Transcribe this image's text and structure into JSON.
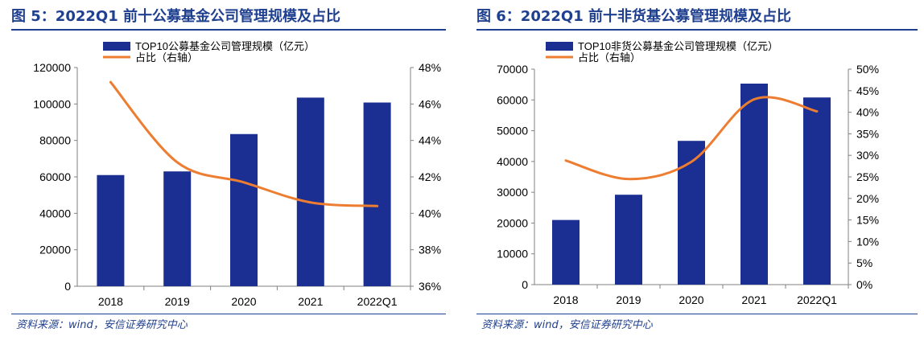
{
  "figures": [
    {
      "title": "图 5：2022Q1 前十公募基金公司管理规模及占比",
      "source": "资料来源：wind，安信证券研究中心",
      "legend": {
        "bar": "TOP10公募基金公司管理规模（亿元）",
        "line": "占比（右轴）"
      },
      "colors": {
        "bar": "#1a2f91",
        "line": "#ed7d31",
        "title": "#1f3f8f"
      }
    },
    {
      "title": "图 6：2022Q1 前十非货基公募管理规模及占比",
      "source": "资料来源：wind，安信证券研究中心",
      "legend": {
        "bar": "TOP10非货公募基金公司管理规模（亿元）",
        "line": "占比（右轴）"
      },
      "colors": {
        "bar": "#1a2f91",
        "line": "#ed7d31",
        "title": "#1f3f8f"
      }
    }
  ],
  "chart_data": [
    {
      "type": "bar",
      "title": "图 5：2022Q1 前十公募基金公司管理规模及占比",
      "categories": [
        "2018",
        "2019",
        "2020",
        "2021",
        "2022Q1"
      ],
      "series": [
        {
          "name": "TOP10公募基金公司管理规模（亿元）",
          "type": "bar",
          "axis": "left",
          "values": [
            61000,
            63000,
            83500,
            103500,
            100800
          ]
        },
        {
          "name": "占比（右轴）",
          "type": "line",
          "axis": "right",
          "values": [
            47.2,
            42.8,
            41.7,
            40.6,
            40.4
          ]
        }
      ],
      "ylim_left": [
        0,
        120000
      ],
      "yticks_left": [
        "0",
        "20000",
        "40000",
        "60000",
        "80000",
        "100000",
        "120000"
      ],
      "ylim_right": [
        36,
        48
      ],
      "yticks_right": [
        "36%",
        "38%",
        "40%",
        "42%",
        "44%",
        "46%",
        "48%"
      ],
      "grid": false,
      "legend_position": "top-left"
    },
    {
      "type": "bar",
      "title": "图 6：2022Q1 前十非货基公募管理规模及占比",
      "categories": [
        "2018",
        "2019",
        "2020",
        "2021",
        "2022Q1"
      ],
      "series": [
        {
          "name": "TOP10非货公募基金公司管理规模（亿元）",
          "type": "bar",
          "axis": "left",
          "values": [
            21000,
            29200,
            46700,
            65300,
            60800
          ]
        },
        {
          "name": "占比（右轴）",
          "type": "line",
          "axis": "right",
          "values": [
            28.8,
            24.5,
            28.5,
            43.0,
            40.2
          ]
        }
      ],
      "ylim_left": [
        0,
        70000
      ],
      "yticks_left": [
        "0",
        "10000",
        "20000",
        "30000",
        "40000",
        "50000",
        "60000",
        "70000"
      ],
      "ylim_right": [
        0,
        50
      ],
      "yticks_right": [
        "0%",
        "5%",
        "10%",
        "15%",
        "20%",
        "25%",
        "30%",
        "35%",
        "40%",
        "45%",
        "50%"
      ],
      "grid": false,
      "legend_position": "top-left"
    }
  ]
}
